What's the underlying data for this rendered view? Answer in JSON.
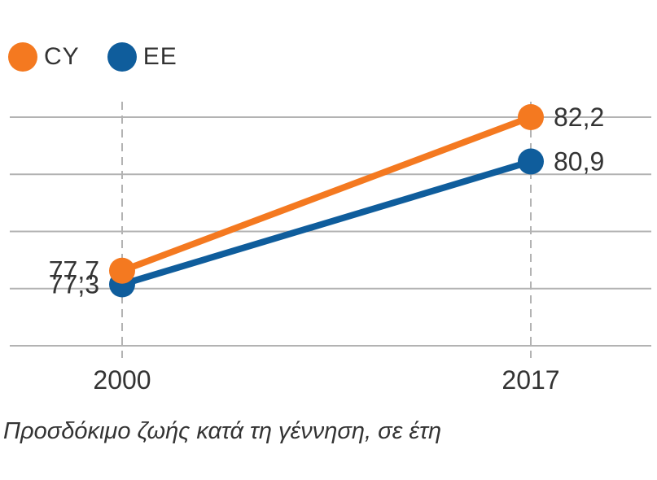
{
  "colors": {
    "cy": "#f47920",
    "ee": "#0f5d9c",
    "grid": "#b3b3b3",
    "text": "#333333"
  },
  "legend": [
    {
      "label": "CY",
      "color": "#f47920"
    },
    {
      "label": "EE",
      "color": "#0f5d9c"
    }
  ],
  "caption": "Προσδόκιμο ζωής κατά τη γέννηση, σε έτη",
  "chart_data": {
    "type": "line",
    "x": [
      "2000",
      "2017"
    ],
    "series": [
      {
        "name": "CY",
        "values": [
          77.7,
          82.2
        ],
        "labels": [
          "77,7",
          "82,2"
        ],
        "color": "#f47920"
      },
      {
        "name": "EE",
        "values": [
          77.3,
          80.9
        ],
        "labels": [
          "77,3",
          "80,9"
        ],
        "color": "#0f5d9c"
      }
    ],
    "ylim": [
      75.5,
      82.2
    ],
    "grid": true,
    "legend_position": "top-left"
  }
}
